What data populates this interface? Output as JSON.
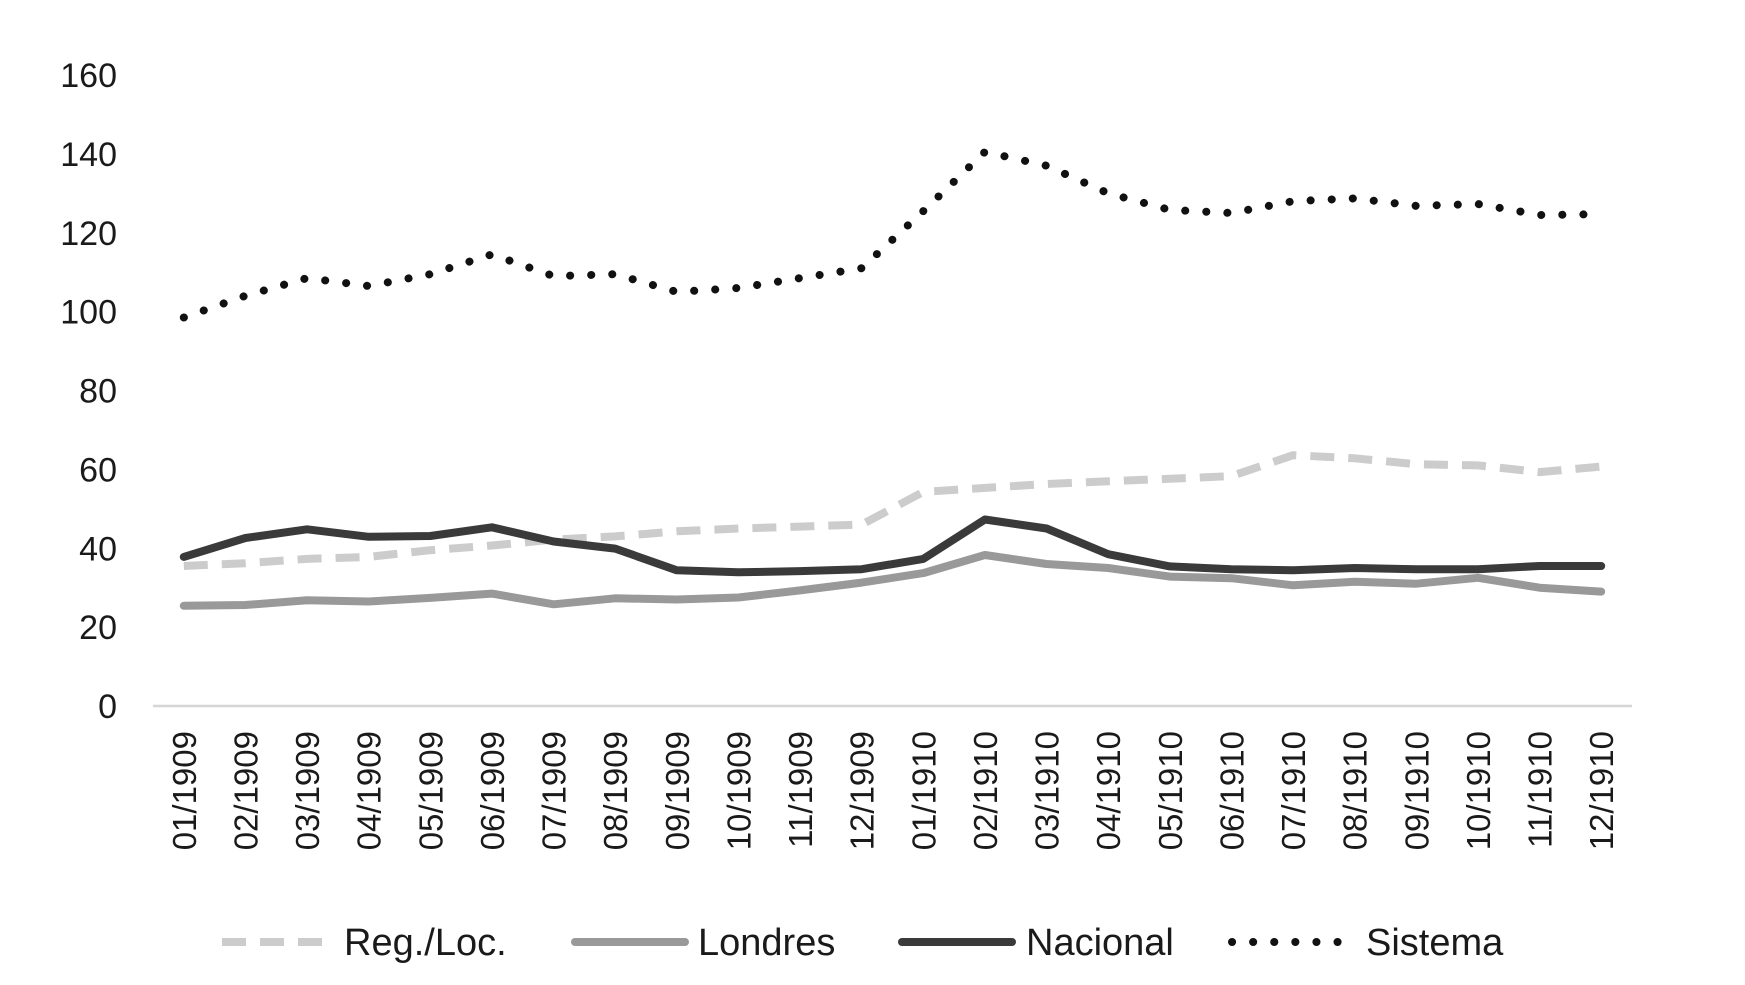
{
  "chart_data": {
    "type": "line",
    "title": "",
    "xlabel": "",
    "ylabel": "",
    "ylim": [
      0,
      160
    ],
    "yticks": [
      0,
      20,
      40,
      60,
      80,
      100,
      120,
      140,
      160
    ],
    "ytick_labels": [
      "0",
      "20",
      "40",
      "60",
      "80",
      "100",
      "120",
      "140",
      "160"
    ],
    "grid": false,
    "legend_position": "bottom",
    "categories": [
      "01/1909",
      "02/1909",
      "03/1909",
      "04/1909",
      "05/1909",
      "06/1909",
      "07/1909",
      "08/1909",
      "09/1909",
      "10/1909",
      "11/1909",
      "12/1909",
      "01/1910",
      "02/1910",
      "03/1910",
      "04/1910",
      "05/1910",
      "06/1910",
      "07/1910",
      "08/1910",
      "09/1910",
      "10/1910",
      "11/1910",
      "12/1910"
    ],
    "series": [
      {
        "name": "Reg./Loc.",
        "color": "#cccccc",
        "style": "dashed",
        "values": [
          35.5,
          36.2,
          37.3,
          37.8,
          39.5,
          40.7,
          42.2,
          43.0,
          44.3,
          45.0,
          45.5,
          46.0,
          54.3,
          55.3,
          56.3,
          57.0,
          57.6,
          58.3,
          63.6,
          62.8,
          61.3,
          61.0,
          59.3,
          60.7
        ]
      },
      {
        "name": "Londres",
        "color": "#999999",
        "style": "solid",
        "values": [
          25.4,
          25.6,
          26.8,
          26.5,
          27.4,
          28.5,
          25.8,
          27.3,
          27.0,
          27.5,
          29.3,
          31.3,
          33.7,
          38.3,
          36.0,
          35.0,
          32.8,
          32.4,
          30.6,
          31.5,
          31.0,
          32.5,
          30.0,
          29.0
        ]
      },
      {
        "name": "Nacional",
        "color": "#3a3a3a",
        "style": "solid",
        "values": [
          37.8,
          42.6,
          44.8,
          42.9,
          43.1,
          45.3,
          41.7,
          39.9,
          34.4,
          33.9,
          34.2,
          34.7,
          37.3,
          47.3,
          45.0,
          38.5,
          35.4,
          34.7,
          34.4,
          35.0,
          34.7,
          34.7,
          35.5,
          35.5
        ]
      },
      {
        "name": "Sistema",
        "color": "#111111",
        "style": "dotted",
        "values": [
          98.5,
          104.0,
          108.5,
          106.5,
          109.5,
          114.5,
          109.0,
          109.5,
          105.0,
          106.0,
          108.5,
          111.0,
          125.5,
          140.5,
          137.0,
          130.0,
          125.8,
          125.0,
          128.0,
          128.7,
          126.8,
          127.3,
          124.5,
          124.7
        ]
      }
    ]
  }
}
